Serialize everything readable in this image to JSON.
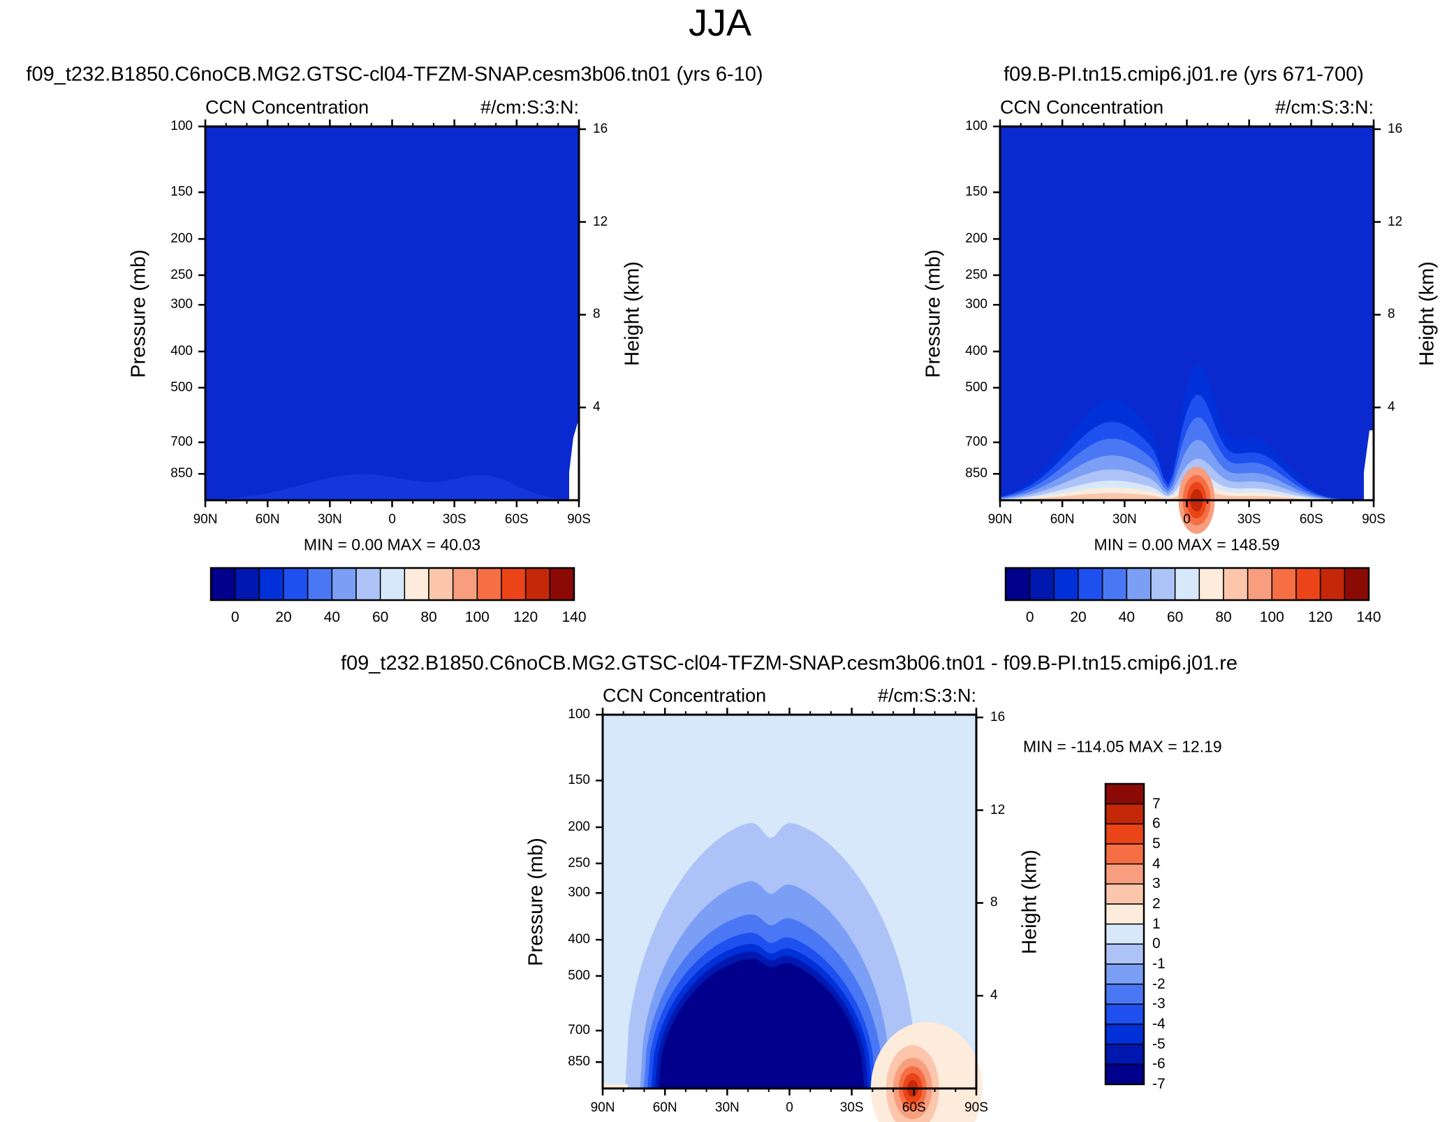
{
  "figure": {
    "season": "JJA"
  },
  "chart_data": [
    {
      "id": "p1",
      "type": "heatmap",
      "title": "f09_t232.B1850.C6noCB.MG2.GTSC-cl04-TFZM-SNAP.cesm3b06.tn01 (yrs 6-10)",
      "left_string": "CCN Concentration",
      "right_string": "#/cm:S:3:N:",
      "ylabel": "Pressure (mb)",
      "y2label": "Height (km)",
      "x_ticks": [
        "90N",
        "60N",
        "30N",
        "0",
        "30S",
        "60S",
        "90S"
      ],
      "y_ticks": [
        "100",
        "150",
        "200",
        "250",
        "300",
        "400",
        "500",
        "700",
        "850"
      ],
      "y_tick_values": [
        100,
        150,
        200,
        250,
        300,
        400,
        500,
        700,
        850
      ],
      "y2_ticks": [
        "16",
        "12",
        "8",
        "4"
      ],
      "ylim": [
        100,
        1000
      ],
      "minmax": "MIN =   0.00  MAX =  40.03",
      "colorbar": {
        "orientation": "horizontal",
        "labels": [
          "0",
          "20",
          "40",
          "60",
          "80",
          "100",
          "120",
          "140"
        ],
        "colors": [
          "#00008c",
          "#0018b0",
          "#0030d8",
          "#1e50f0",
          "#4a78f5",
          "#7b9ff5",
          "#adc3f8",
          "#d8e8fb",
          "#fdebdc",
          "#fbc6ac",
          "#f89e7e",
          "#f56e44",
          "#ea4418",
          "#c42808",
          "#8c0a05"
        ]
      }
    },
    {
      "id": "p2",
      "type": "heatmap",
      "title": "f09.B-PI.tn15.cmip6.j01.re (yrs 671-700)",
      "left_string": "CCN Concentration",
      "right_string": "#/cm:S:3:N:",
      "ylabel": "Pressure (mb)",
      "y2label": "Height (km)",
      "x_ticks": [
        "90N",
        "60N",
        "30N",
        "0",
        "30S",
        "60S",
        "90S"
      ],
      "y_ticks": [
        "100",
        "150",
        "200",
        "250",
        "300",
        "400",
        "500",
        "700",
        "850"
      ],
      "y_tick_values": [
        100,
        150,
        200,
        250,
        300,
        400,
        500,
        700,
        850
      ],
      "y2_ticks": [
        "16",
        "12",
        "8",
        "4"
      ],
      "ylim": [
        100,
        1000
      ],
      "minmax": "MIN =   0.00  MAX = 148.59",
      "colorbar": {
        "orientation": "horizontal",
        "labels": [
          "0",
          "20",
          "40",
          "60",
          "80",
          "100",
          "120",
          "140"
        ],
        "colors": [
          "#00008c",
          "#0018b0",
          "#0030d8",
          "#1e50f0",
          "#4a78f5",
          "#7b9ff5",
          "#adc3f8",
          "#d8e8fb",
          "#fdebdc",
          "#fbc6ac",
          "#f89e7e",
          "#f56e44",
          "#ea4418",
          "#c42808",
          "#8c0a05"
        ]
      }
    },
    {
      "id": "p3",
      "type": "heatmap",
      "title": "f09_t232.B1850.C6noCB.MG2.GTSC-cl04-TFZM-SNAP.cesm3b06.tn01 - f09.B-PI.tn15.cmip6.j01.re",
      "left_string": "CCN Concentration",
      "right_string": "#/cm:S:3:N:",
      "ylabel": "Pressure (mb)",
      "y2label": "Height (km)",
      "x_ticks": [
        "90N",
        "60N",
        "30N",
        "0",
        "30S",
        "60S",
        "90S"
      ],
      "y_ticks": [
        "100",
        "150",
        "200",
        "250",
        "300",
        "400",
        "500",
        "700",
        "850"
      ],
      "y_tick_values": [
        100,
        150,
        200,
        250,
        300,
        400,
        500,
        700,
        850
      ],
      "y2_ticks": [
        "16",
        "12",
        "8",
        "4"
      ],
      "ylim": [
        100,
        1000
      ],
      "minmax": "MIN = -114.05  MAX =  12.19",
      "colorbar": {
        "orientation": "vertical",
        "labels": [
          "7",
          "6",
          "5",
          "4",
          "3",
          "2",
          "1",
          "0",
          "-1",
          "-2",
          "-3",
          "-4",
          "-5",
          "-6",
          "-7"
        ],
        "colors": [
          "#8c0a05",
          "#c42808",
          "#ea4418",
          "#f56e44",
          "#f89e7e",
          "#fbc6ac",
          "#fdebdc",
          "#d8e8fb",
          "#adc3f8",
          "#7b9ff5",
          "#4a78f5",
          "#1e50f0",
          "#0030d8",
          "#0018b0",
          "#00008c"
        ]
      }
    }
  ]
}
